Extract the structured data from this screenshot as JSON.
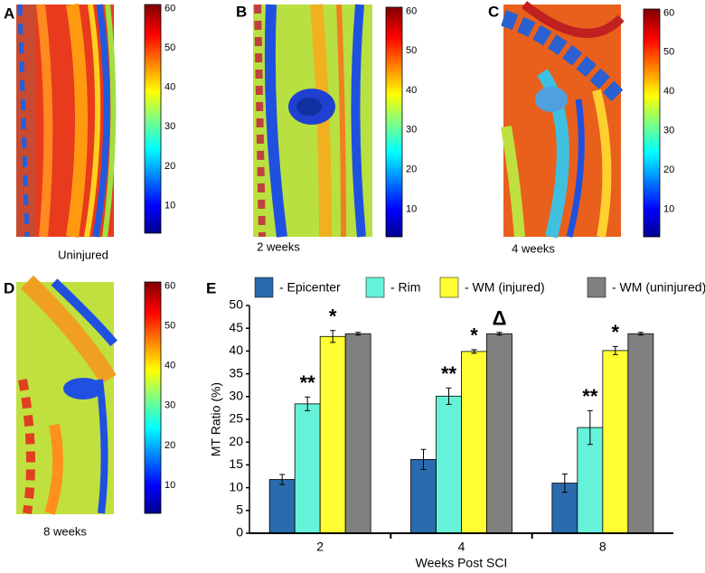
{
  "panels": [
    {
      "label": "A",
      "caption": "Uninjured"
    },
    {
      "label": "B",
      "caption": "2 weeks"
    },
    {
      "label": "C",
      "caption": "4 weeks"
    },
    {
      "label": "D",
      "caption": "8 weeks"
    }
  ],
  "colorbar_ticks": [
    10,
    20,
    30,
    40,
    50,
    60
  ],
  "clim": [
    3,
    61
  ],
  "chart_data": {
    "type": "bar",
    "panel_label": "E",
    "categories": [
      "2",
      "4",
      "8"
    ],
    "series": [
      {
        "name": "- Epicenter",
        "color": "#2a6aad",
        "values": [
          11.8,
          16.2,
          11.0
        ],
        "errors": [
          1.1,
          2.2,
          2.0
        ]
      },
      {
        "name": "- Rim",
        "color": "#66f2d8",
        "values": [
          28.4,
          30.1,
          23.2
        ],
        "errors": [
          1.5,
          1.8,
          3.7
        ],
        "annotations": [
          "**",
          "**",
          "**"
        ]
      },
      {
        "name": "- WM (injured)",
        "color": "#ffff33",
        "values": [
          43.2,
          39.9,
          40.1
        ],
        "errors": [
          1.3,
          0.4,
          0.9
        ],
        "annotations": [
          "*",
          "*",
          "*"
        ]
      },
      {
        "name": "- WM (uninjured)",
        "color": "#808080",
        "values": [
          43.8,
          43.8,
          43.8
        ],
        "errors": [
          0.3,
          0.3,
          0.3
        ],
        "annotations": [
          null,
          "Δ",
          null
        ]
      }
    ],
    "ylabel": "MT Ratio (%)",
    "xlabel": "Weeks Post SCI",
    "ylim": [
      0,
      50
    ],
    "yticks": [
      0,
      5,
      10,
      15,
      20,
      25,
      30,
      35,
      40,
      45,
      50
    ]
  }
}
